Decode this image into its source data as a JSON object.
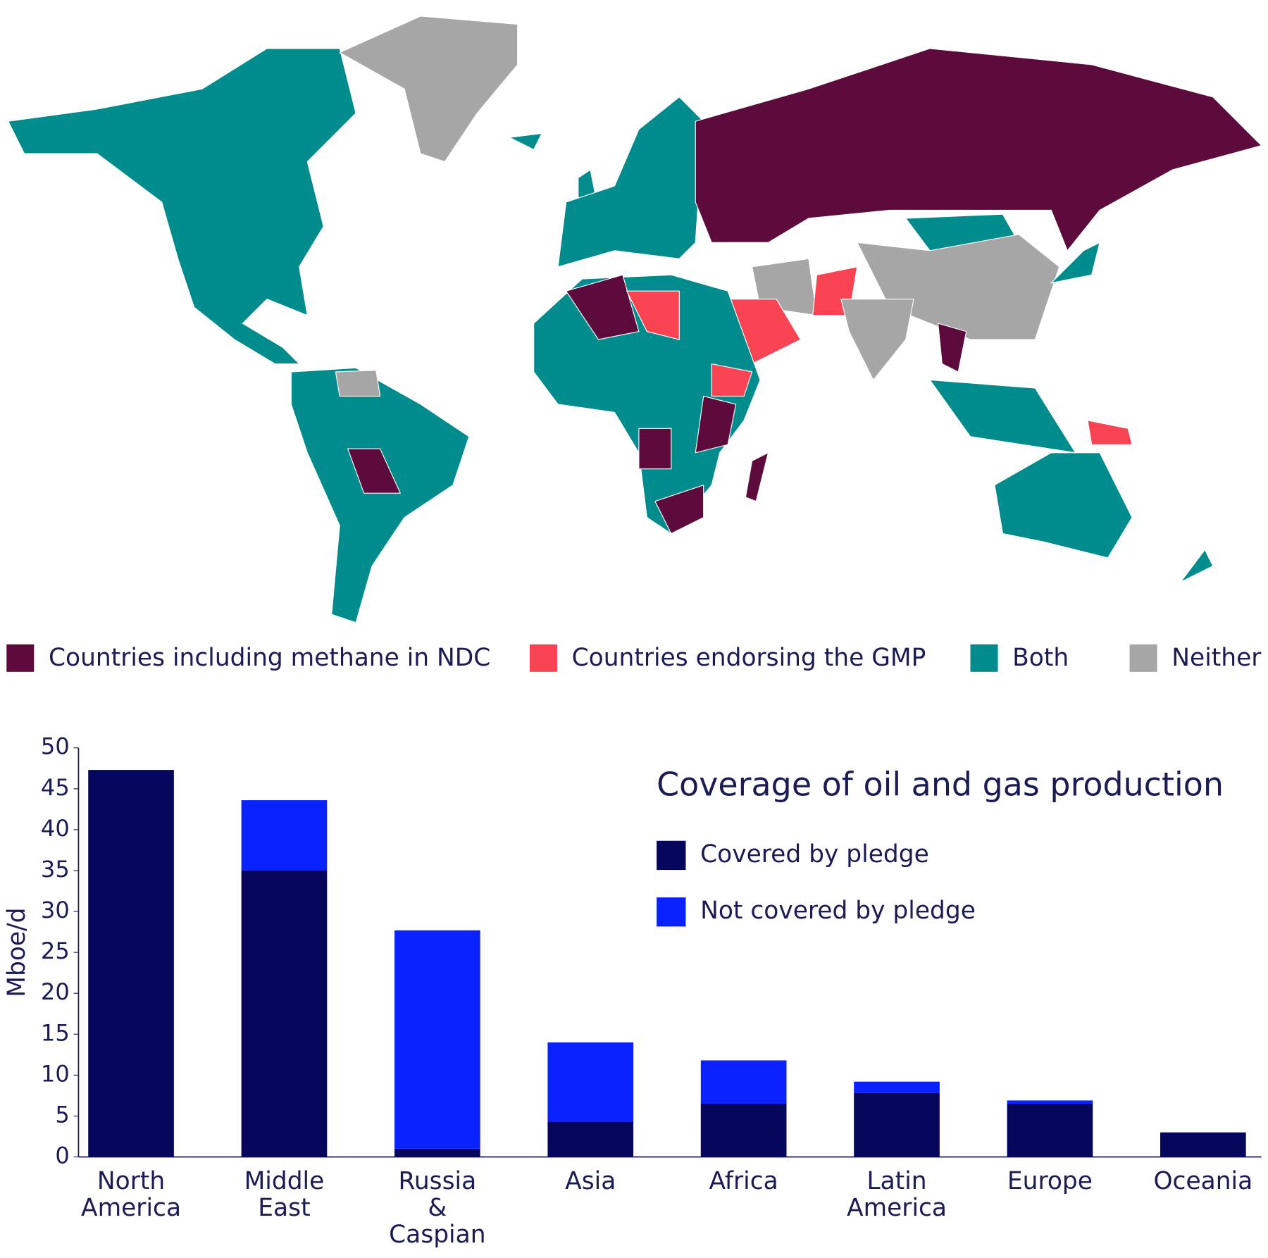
{
  "map": {
    "legend": [
      {
        "name": "Countries including methane in NDC",
        "color": "#5c0b3c"
      },
      {
        "name": "Countries endorsing the GMP",
        "color": "#fa4454"
      },
      {
        "name": "Both",
        "color": "#008c8c"
      },
      {
        "name": "Neither",
        "color": "#a6a6a6"
      }
    ]
  },
  "chart_data": {
    "type": "stacked-bar",
    "title": "Coverage of oil and gas production",
    "y_label": "Mboe/d",
    "categories": [
      "North America",
      "Middle East",
      "Russia & Caspian",
      "Asia",
      "Africa",
      "Latin America",
      "Europe",
      "Oceania"
    ],
    "series": [
      {
        "name": "Covered by pledge",
        "color": "#06065c",
        "values": [
          47.3,
          35.0,
          1.0,
          4.3,
          6.5,
          7.8,
          6.5,
          3.0
        ]
      },
      {
        "name": "Not covered by pledge",
        "color": "#0a22ff",
        "values": [
          0,
          8.6,
          26.7,
          9.7,
          5.3,
          1.4,
          0.4,
          0
        ]
      }
    ],
    "ylim": [
      0,
      50
    ],
    "yticks": [
      0,
      5,
      10,
      15,
      20,
      25,
      30,
      35,
      40,
      45,
      50
    ],
    "grid": false,
    "legend": "top-right"
  }
}
